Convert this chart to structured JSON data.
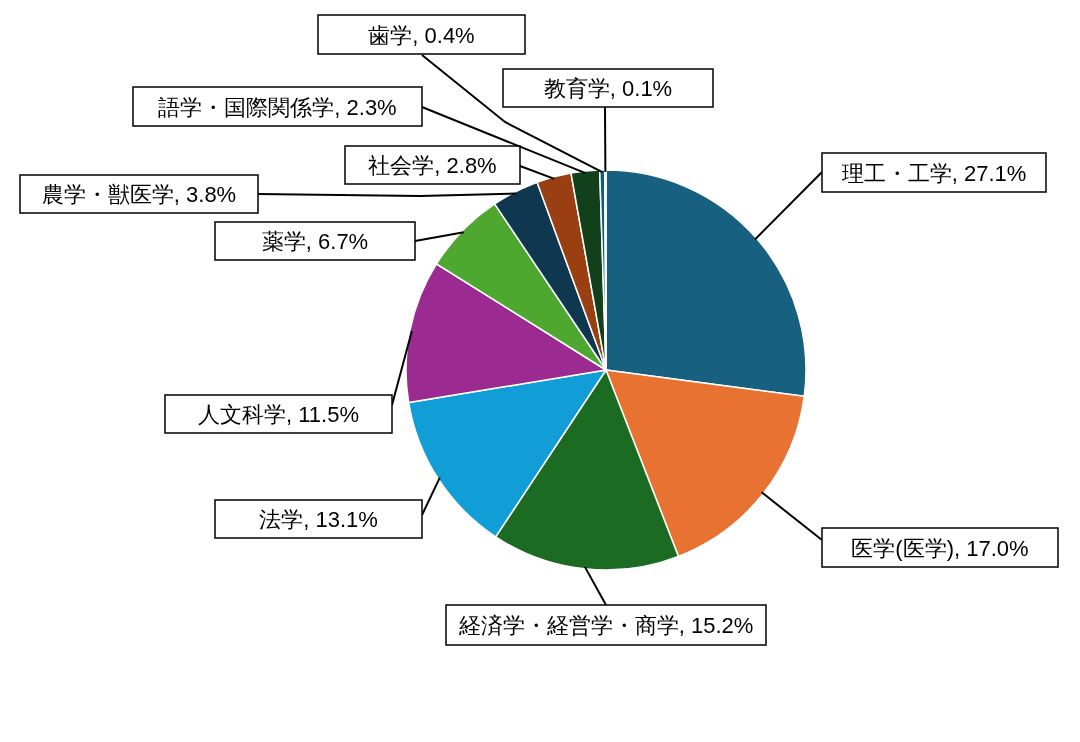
{
  "chart_data": {
    "type": "pie",
    "categories": [
      "理工・工学",
      "医学(医学)",
      "経済学・経営学・商学",
      "法学",
      "人文科学",
      "薬学",
      "農学・獣医学",
      "社会学",
      "語学・国際関係学",
      "歯学",
      "教育学"
    ],
    "values": [
      27.1,
      17.0,
      15.2,
      13.1,
      11.5,
      6.7,
      3.8,
      2.8,
      2.3,
      0.4,
      0.1
    ],
    "value_labels": [
      "27.1%",
      "17.0%",
      "15.2%",
      "13.1%",
      "11.5%",
      "6.7%",
      "3.8%",
      "2.8%",
      "2.3%",
      "0.4%",
      "0.1%"
    ],
    "colors": [
      "#17607f",
      "#e87232",
      "#1b6b23",
      "#119ed6",
      "#9b2a91",
      "#4ea72e",
      "#0f3750",
      "#9a3f12",
      "#12401a",
      "#0b5e80",
      "#601a58"
    ]
  }
}
